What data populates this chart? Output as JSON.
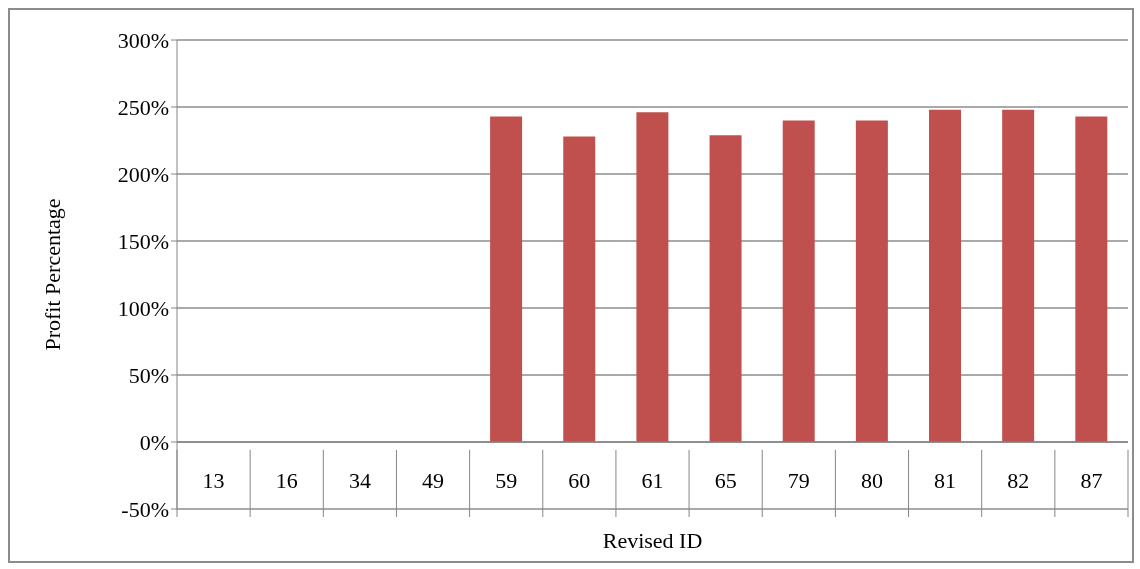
{
  "chart_data": {
    "type": "bar",
    "xlabel": "Revised ID",
    "ylabel": "Profit Percentage",
    "categories": [
      "13",
      "16",
      "34",
      "49",
      "59",
      "60",
      "61",
      "65",
      "79",
      "80",
      "81",
      "82",
      "87"
    ],
    "values": [
      0,
      0,
      0,
      0,
      243,
      228,
      246,
      229,
      240,
      240,
      248,
      248,
      243
    ],
    "color": "#c0504d",
    "ylim": [
      -50,
      300
    ],
    "yticks": [
      {
        "value": -50,
        "label": "-50%"
      },
      {
        "value": 0,
        "label": "0%"
      },
      {
        "value": 50,
        "label": "50%"
      },
      {
        "value": 100,
        "label": "100%"
      },
      {
        "value": 150,
        "label": "150%"
      },
      {
        "value": 200,
        "label": "200%"
      },
      {
        "value": 250,
        "label": "250%"
      },
      {
        "value": 300,
        "label": "300%"
      }
    ],
    "grid": "y"
  }
}
